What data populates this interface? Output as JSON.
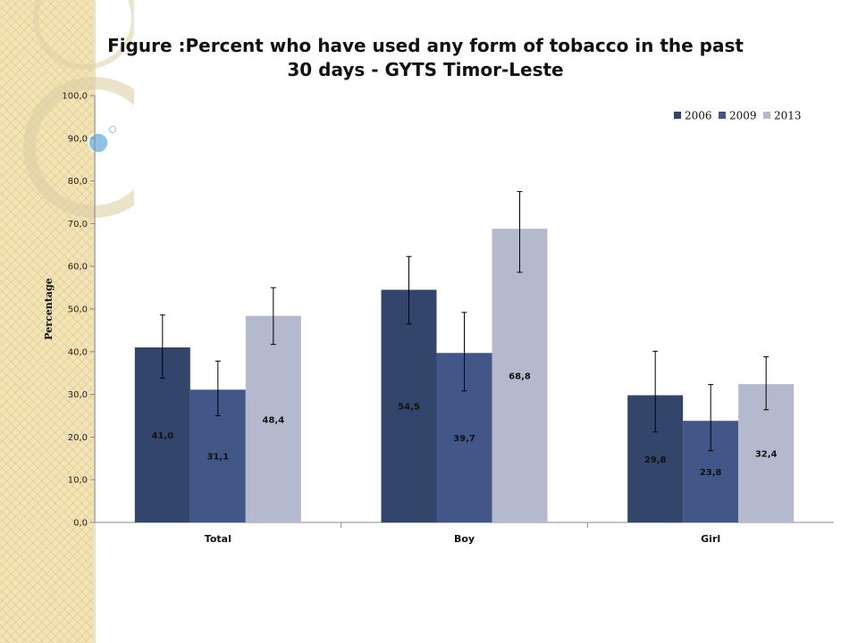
{
  "slide": {
    "title_line1": "Figure   :Percent who have used any form of tobacco in the past",
    "title_line2": "30 days - GYTS Timor-Leste"
  },
  "colors": {
    "series": [
      "#34456b",
      "#425687",
      "#b4b9cd"
    ],
    "gridline": "#cccccc",
    "side_pattern": "#f3e4b6",
    "deco_ring": "#d9cfae",
    "deco_bubble": "#8fc3e6"
  },
  "chart_data": {
    "type": "bar",
    "categories": [
      "Total",
      "Boy",
      "Girl"
    ],
    "series": [
      {
        "name": "2006",
        "values": [
          41.0,
          54.5,
          29.8
        ],
        "labels": [
          "41,0",
          "54,5",
          "29,8"
        ],
        "err_low": [
          33.8,
          46.5,
          21.2
        ],
        "err_high": [
          48.6,
          62.3,
          40.1
        ]
      },
      {
        "name": "2009",
        "values": [
          31.1,
          39.7,
          23.8
        ],
        "labels": [
          "31,1",
          "39,7",
          "23,8"
        ],
        "err_low": [
          25.0,
          30.8,
          16.8
        ],
        "err_high": [
          37.8,
          49.2,
          32.3
        ]
      },
      {
        "name": "2013",
        "values": [
          48.4,
          68.8,
          32.4
        ],
        "labels": [
          "48,4",
          "68,8",
          "32,4"
        ],
        "err_low": [
          41.7,
          58.6,
          26.4
        ],
        "err_high": [
          55.0,
          77.5,
          38.8
        ]
      }
    ],
    "title": "Figure   :Percent who have used any form of tobacco in the past 30 days - GYTS Timor-Leste",
    "xlabel": "",
    "ylabel": "Percentage",
    "ylim": [
      0,
      100
    ],
    "yticks": [
      0,
      10,
      20,
      30,
      40,
      50,
      60,
      70,
      80,
      90,
      100
    ],
    "ytick_labels": [
      "0,0",
      "10,0",
      "20,0",
      "30,0",
      "40,0",
      "50,0",
      "60,0",
      "70,0",
      "80,0",
      "90,0",
      "100,0"
    ],
    "grid": false,
    "legend": "top-right",
    "error_bars": true,
    "data_label_position": "inside-middle"
  }
}
